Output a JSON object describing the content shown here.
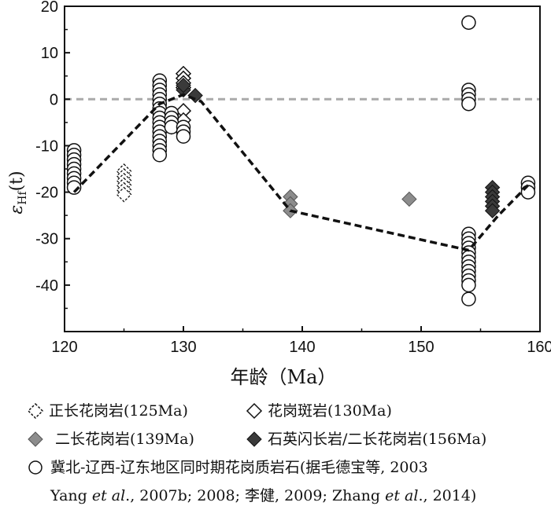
{
  "chart_data": {
    "type": "scatter",
    "xlabel": "年龄（Ma）",
    "ylabel_main": "ε",
    "ylabel_sub": "Hf",
    "ylabel_suffix": "(t)",
    "xlim": [
      120,
      160
    ],
    "ylim": [
      -50,
      20
    ],
    "xticks": [
      "120",
      "130",
      "140",
      "150",
      "160"
    ],
    "yticks": [
      "20",
      "10",
      "0",
      "-10",
      "-20",
      "-30",
      "-40"
    ],
    "reference_line_y": 0,
    "trend_line": [
      [
        120.8,
        -20
      ],
      [
        128,
        -1
      ],
      [
        130,
        1
      ],
      [
        131.5,
        -0.5
      ],
      [
        139,
        -24
      ],
      [
        154,
        -32.5
      ],
      [
        156.5,
        -25
      ],
      [
        159,
        -18.5
      ]
    ],
    "series": [
      {
        "name": "正长花岗岩(125Ma)",
        "marker": "diamond-dashed",
        "points": [
          [
            125,
            -15.5
          ],
          [
            125,
            -16.5
          ],
          [
            125,
            -17.5
          ],
          [
            125,
            -18.5
          ],
          [
            125,
            -19.5
          ],
          [
            125,
            -20.5
          ]
        ]
      },
      {
        "name": "花岗斑岩(130Ma)",
        "marker": "diamond-open",
        "points": [
          [
            130,
            5.5
          ],
          [
            130,
            4.5
          ],
          [
            130,
            3.5
          ],
          [
            130,
            2.5
          ],
          [
            130,
            -2.5
          ],
          [
            130,
            -4.5
          ]
        ]
      },
      {
        "name": "二长花岗岩(139Ma)",
        "marker": "diamond-gray",
        "points": [
          [
            139,
            -21
          ],
          [
            139,
            -22.5
          ],
          [
            139,
            -24
          ],
          [
            149,
            -21.5
          ]
        ]
      },
      {
        "name": "石英闪长岩/二长花岗岩(156Ma)",
        "marker": "diamond-dark",
        "points": [
          [
            156,
            -19
          ],
          [
            156,
            -20
          ],
          [
            156,
            -21
          ],
          [
            156,
            -22
          ],
          [
            156,
            -23
          ],
          [
            156,
            -24
          ],
          [
            129,
            -3.5
          ],
          [
            129,
            -5
          ],
          [
            129,
            -6
          ],
          [
            130,
            2
          ],
          [
            130,
            3
          ],
          [
            131,
            0.8
          ]
        ]
      },
      {
        "name": "冀北-辽西-辽东地区同时期花岗质岩石",
        "marker": "circle-open",
        "points": [
          [
            120.8,
            -11
          ],
          [
            120.8,
            -12
          ],
          [
            120.8,
            -13
          ],
          [
            120.8,
            -14
          ],
          [
            120.8,
            -15
          ],
          [
            120.8,
            -16
          ],
          [
            120.8,
            -17
          ],
          [
            120.8,
            -18
          ],
          [
            120.8,
            -19
          ],
          [
            128,
            4
          ],
          [
            128,
            3
          ],
          [
            128,
            2
          ],
          [
            128,
            1
          ],
          [
            128,
            0
          ],
          [
            128,
            -1
          ],
          [
            128,
            -2
          ],
          [
            128,
            -3
          ],
          [
            128,
            -4
          ],
          [
            128,
            -5
          ],
          [
            128,
            -6
          ],
          [
            128,
            -7
          ],
          [
            128,
            -8
          ],
          [
            128,
            -9
          ],
          [
            128,
            -10
          ],
          [
            128,
            -11
          ],
          [
            128,
            -12
          ],
          [
            129,
            -3
          ],
          [
            129,
            -4
          ],
          [
            129,
            -5
          ],
          [
            129,
            -6
          ],
          [
            130,
            -6
          ],
          [
            130,
            -7
          ],
          [
            130,
            -8
          ],
          [
            154,
            16.5
          ],
          [
            154,
            2
          ],
          [
            154,
            1
          ],
          [
            154,
            0
          ],
          [
            154,
            -1
          ],
          [
            154,
            -29
          ],
          [
            154,
            -30
          ],
          [
            154,
            -31
          ],
          [
            154,
            -32
          ],
          [
            154,
            -33
          ],
          [
            154,
            -34
          ],
          [
            154,
            -35
          ],
          [
            154,
            -36
          ],
          [
            154,
            -37
          ],
          [
            154,
            -38
          ],
          [
            154,
            -39
          ],
          [
            154,
            -40
          ],
          [
            154,
            -43
          ],
          [
            159,
            -18
          ],
          [
            159,
            -19
          ],
          [
            159,
            -20
          ]
        ]
      }
    ]
  },
  "legend": {
    "item1": "正长花岗岩(125Ma)",
    "item2": "花岗斑岩(130Ma)",
    "item3": "二长花岗岩(139Ma)",
    "item4": "石英闪长岩/二长花岗岩(156Ma)",
    "note_line1": "冀北-辽西-辽东地区同时期花岗质岩石(据毛德宝等, 2003",
    "note_line2_a": "Yang ",
    "note_line2_etal1": "et al",
    "note_line2_b": "., 2007b; 2008; 李健,  2009; Zhang ",
    "note_line2_etal2": "et al",
    "note_line2_c": "., 2014)"
  },
  "colors": {
    "axis": "#111111",
    "reference_line": "#aaaaaa",
    "gray_fill": "#8c8c8c",
    "dark_fill": "#3a3a3a"
  }
}
